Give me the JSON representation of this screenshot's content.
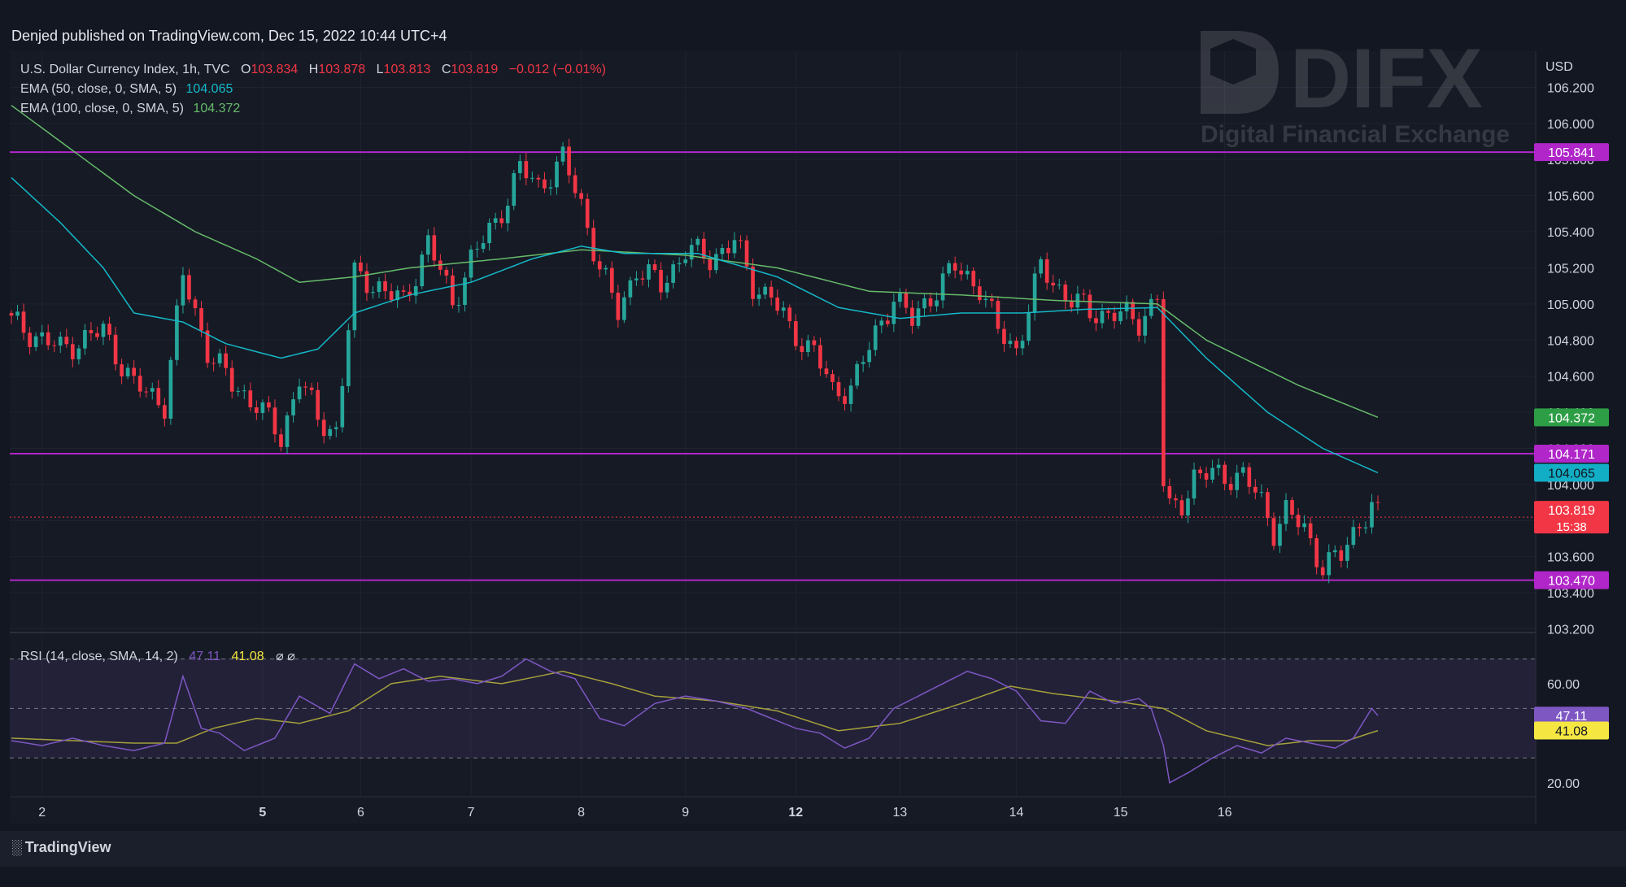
{
  "header": {
    "published_text": "Denjed published on TradingView.com, Dec 15, 2022 10:44 UTC+4"
  },
  "footer": {
    "brand": "TradingView"
  },
  "watermark": {
    "brand": "DIFX",
    "tagline": "Digital Financial Exchange"
  },
  "legend": {
    "symbol": "U.S. Dollar Currency Index, 1h, TVC",
    "o_label": "O",
    "o_value": "103.834",
    "h_label": "H",
    "h_value": "103.878",
    "l_label": "L",
    "l_value": "103.813",
    "c_label": "C",
    "c_value": "103.819",
    "change": "−0.012 (−0.01%)",
    "ema50_label": "EMA (50, close, 0, SMA, 5)",
    "ema50_value": "104.065",
    "ema100_label": "EMA (100, close, 0, SMA, 5)",
    "ema100_value": "104.372",
    "rsi_label": "RSI (14, close, SMA, 14, 2)",
    "rsi_value": "47.11",
    "rsi_sma_value": "41.08",
    "rsi_extra": "⌀  ⌀"
  },
  "colors": {
    "up": "#26a69a",
    "down": "#f23645",
    "ema50": "#14b8c8",
    "ema100": "#66bb6a",
    "hline": "#b026c9",
    "rsi": "#7e57c2",
    "rsi_sma": "#a5a03a",
    "price_tag": "#f23645"
  },
  "chart_data": [
    {
      "type": "candlestick",
      "title": "U.S. Dollar Currency Index, 1h, TVC",
      "currency": "USD",
      "y_ticks": [
        "106.200",
        "106.000",
        "105.800",
        "105.600",
        "105.400",
        "105.200",
        "105.000",
        "104.800",
        "104.600",
        "104.400",
        "104.200",
        "104.000",
        "103.800",
        "103.600",
        "103.400",
        "103.200"
      ],
      "ylim": [
        103.18,
        106.4
      ],
      "x_ticks": [
        "2",
        "5",
        "6",
        "7",
        "8",
        "9",
        "12",
        "13",
        "14",
        "15",
        "16"
      ],
      "x_ticks_bold": [
        "5",
        "12"
      ],
      "horizontal_levels": [
        {
          "value": 105.841,
          "label": "105.841"
        },
        {
          "value": 104.171,
          "label": "104.171"
        },
        {
          "value": 103.47,
          "label": "103.470"
        }
      ],
      "last_price": {
        "value": 103.819,
        "label": "103.819",
        "countdown": "15:38"
      },
      "ema_tags": [
        {
          "name": "EMA 100",
          "value": 104.372,
          "label": "104.372"
        },
        {
          "name": "EMA 50",
          "value": 104.065,
          "label": "104.065"
        }
      ],
      "close_anchors": [
        [
          0,
          104.9
        ],
        [
          8,
          104.75
        ],
        [
          15,
          104.85
        ],
        [
          20,
          104.55
        ],
        [
          25,
          104.45
        ],
        [
          28,
          105.15
        ],
        [
          32,
          104.75
        ],
        [
          36,
          104.55
        ],
        [
          40,
          104.45
        ],
        [
          44,
          104.25
        ],
        [
          47,
          104.6
        ],
        [
          50,
          104.35
        ],
        [
          53,
          104.3
        ],
        [
          56,
          105.15
        ],
        [
          60,
          105.1
        ],
        [
          64,
          105.0
        ],
        [
          68,
          105.35
        ],
        [
          72,
          105.0
        ],
        [
          75,
          105.25
        ],
        [
          79,
          105.45
        ],
        [
          83,
          105.75
        ],
        [
          86,
          105.65
        ],
        [
          90,
          105.8
        ],
        [
          93,
          105.55
        ],
        [
          96,
          105.2
        ],
        [
          99,
          104.95
        ],
        [
          102,
          105.2
        ],
        [
          106,
          105.1
        ],
        [
          110,
          105.3
        ],
        [
          114,
          105.25
        ],
        [
          118,
          105.35
        ],
        [
          121,
          105.1
        ],
        [
          124,
          105.05
        ],
        [
          127,
          104.85
        ],
        [
          131,
          104.75
        ],
        [
          134,
          104.5
        ],
        [
          137,
          104.55
        ],
        [
          140,
          104.75
        ],
        [
          144,
          105.05
        ],
        [
          147,
          104.9
        ],
        [
          150,
          105.05
        ],
        [
          154,
          105.2
        ],
        [
          158,
          105.1
        ],
        [
          161,
          104.85
        ],
        [
          164,
          104.75
        ],
        [
          168,
          105.2
        ],
        [
          172,
          105.05
        ],
        [
          176,
          104.95
        ],
        [
          180,
          104.95
        ],
        [
          184,
          104.9
        ],
        [
          187,
          105.05
        ],
        [
          188,
          104.0
        ],
        [
          189,
          103.85
        ],
        [
          191,
          103.9
        ],
        [
          193,
          104.05
        ],
        [
          197,
          104.05
        ],
        [
          201,
          104.05
        ],
        [
          204,
          103.9
        ],
        [
          206,
          103.75
        ],
        [
          208,
          103.85
        ],
        [
          211,
          103.75
        ],
        [
          214,
          103.55
        ],
        [
          217,
          103.6
        ],
        [
          220,
          103.8
        ],
        [
          222,
          103.87
        ],
        [
          223,
          103.819
        ]
      ],
      "ema50_anchors": [
        [
          0,
          105.7
        ],
        [
          8,
          105.45
        ],
        [
          15,
          105.2
        ],
        [
          20,
          104.95
        ],
        [
          28,
          104.9
        ],
        [
          35,
          104.78
        ],
        [
          44,
          104.7
        ],
        [
          50,
          104.75
        ],
        [
          56,
          104.95
        ],
        [
          65,
          105.05
        ],
        [
          75,
          105.12
        ],
        [
          85,
          105.25
        ],
        [
          93,
          105.32
        ],
        [
          100,
          105.28
        ],
        [
          112,
          105.28
        ],
        [
          125,
          105.15
        ],
        [
          135,
          104.98
        ],
        [
          145,
          104.92
        ],
        [
          155,
          104.95
        ],
        [
          165,
          104.95
        ],
        [
          175,
          104.97
        ],
        [
          187,
          104.98
        ],
        [
          195,
          104.7
        ],
        [
          205,
          104.4
        ],
        [
          214,
          104.2
        ],
        [
          223,
          104.065
        ]
      ],
      "ema100_anchors": [
        [
          0,
          106.1
        ],
        [
          10,
          105.85
        ],
        [
          20,
          105.6
        ],
        [
          30,
          105.4
        ],
        [
          40,
          105.25
        ],
        [
          47,
          105.12
        ],
        [
          56,
          105.15
        ],
        [
          65,
          105.2
        ],
        [
          80,
          105.25
        ],
        [
          93,
          105.3
        ],
        [
          110,
          105.27
        ],
        [
          125,
          105.2
        ],
        [
          140,
          105.07
        ],
        [
          155,
          105.05
        ],
        [
          170,
          105.02
        ],
        [
          187,
          105.0
        ],
        [
          195,
          104.8
        ],
        [
          210,
          104.55
        ],
        [
          223,
          104.372
        ]
      ]
    },
    {
      "type": "line",
      "title": "RSI (14, close, SMA, 14, 2)",
      "ylim": [
        15,
        80
      ],
      "y_ticks": [
        "60.00",
        "20.00"
      ],
      "band": [
        30,
        70
      ],
      "midline": 50,
      "series": [
        {
          "name": "RSI",
          "last": 47.11,
          "anchors": [
            [
              0,
              37
            ],
            [
              5,
              35
            ],
            [
              10,
              38
            ],
            [
              15,
              35
            ],
            [
              20,
              33
            ],
            [
              25,
              36
            ],
            [
              28,
              63
            ],
            [
              31,
              42
            ],
            [
              34,
              40
            ],
            [
              38,
              33
            ],
            [
              43,
              38
            ],
            [
              47,
              55
            ],
            [
              52,
              48
            ],
            [
              56,
              68
            ],
            [
              60,
              62
            ],
            [
              64,
              66
            ],
            [
              68,
              61
            ],
            [
              72,
              62
            ],
            [
              76,
              60
            ],
            [
              80,
              63
            ],
            [
              84,
              70
            ],
            [
              88,
              65
            ],
            [
              92,
              62
            ],
            [
              96,
              46
            ],
            [
              100,
              43
            ],
            [
              105,
              52
            ],
            [
              110,
              55
            ],
            [
              115,
              53
            ],
            [
              120,
              50
            ],
            [
              124,
              46
            ],
            [
              128,
              42
            ],
            [
              132,
              40
            ],
            [
              136,
              34
            ],
            [
              140,
              38
            ],
            [
              144,
              50
            ],
            [
              148,
              55
            ],
            [
              152,
              60
            ],
            [
              156,
              65
            ],
            [
              160,
              62
            ],
            [
              164,
              57
            ],
            [
              168,
              45
            ],
            [
              172,
              44
            ],
            [
              176,
              57
            ],
            [
              180,
              52
            ],
            [
              184,
              54
            ],
            [
              186,
              50
            ],
            [
              188,
              35
            ],
            [
              189,
              20
            ],
            [
              192,
              24
            ],
            [
              196,
              30
            ],
            [
              200,
              35
            ],
            [
              204,
              32
            ],
            [
              208,
              38
            ],
            [
              212,
              36
            ],
            [
              216,
              34
            ],
            [
              219,
              38
            ],
            [
              222,
              50
            ],
            [
              223,
              47.11
            ]
          ]
        },
        {
          "name": "RSI SMA",
          "last": 41.08,
          "anchors": [
            [
              0,
              38
            ],
            [
              10,
              37
            ],
            [
              20,
              36
            ],
            [
              27,
              36
            ],
            [
              33,
              42
            ],
            [
              40,
              46
            ],
            [
              47,
              44
            ],
            [
              55,
              49
            ],
            [
              62,
              60
            ],
            [
              70,
              63
            ],
            [
              80,
              60
            ],
            [
              90,
              65
            ],
            [
              98,
              60
            ],
            [
              105,
              55
            ],
            [
              115,
              53
            ],
            [
              125,
              49
            ],
            [
              135,
              41
            ],
            [
              145,
              44
            ],
            [
              155,
              52
            ],
            [
              163,
              59
            ],
            [
              170,
              56
            ],
            [
              180,
              53
            ],
            [
              188,
              50
            ],
            [
              195,
              41
            ],
            [
              205,
              35
            ],
            [
              212,
              37
            ],
            [
              218,
              37
            ],
            [
              223,
              41.08
            ]
          ]
        }
      ]
    }
  ]
}
